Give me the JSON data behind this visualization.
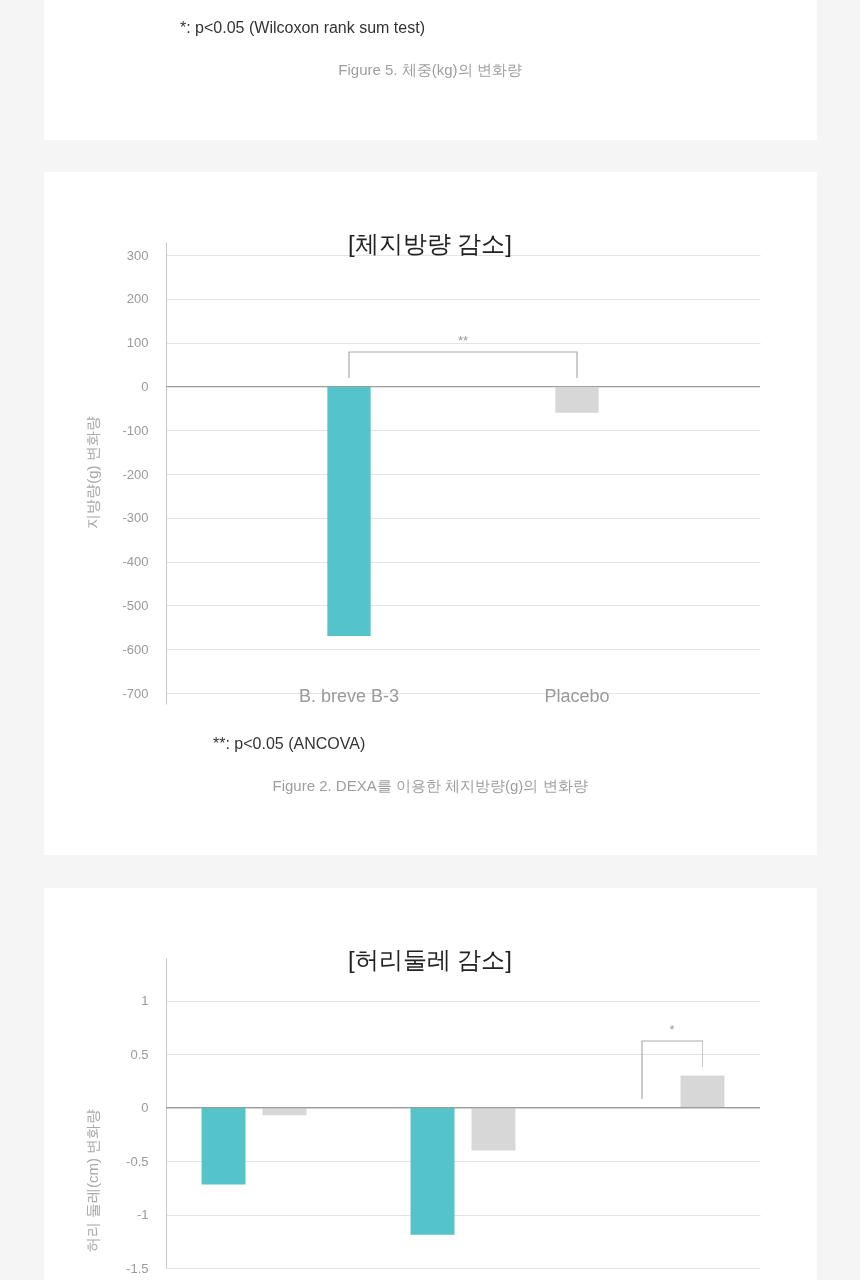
{
  "chart_data": [
    {
      "type": "other",
      "annotations": [
        "*: p<0.05 (Wilcoxon rank sum test)",
        "Figure 5. 체중(kg)의 변화량"
      ]
    },
    {
      "type": "bar",
      "title": "[체지방량 감소]",
      "ylabel": "지방량(g) 변화량",
      "categories": [
        "B. breve B-3",
        "Placebo"
      ],
      "values": [
        -570,
        -60
      ],
      "colors": [
        "#55c4ca",
        "#d7d7d7"
      ],
      "ylim": [
        -725,
        330
      ],
      "yticks": [
        -700,
        -600,
        -500,
        -400,
        -300,
        -200,
        -100,
        0,
        100,
        200,
        300
      ],
      "grid": "y",
      "annotations": [
        "**",
        "**: p<0.05 (ANCOVA)",
        "Figure 2. DEXA를 이용한 체지방량(g)의 변화량"
      ]
    },
    {
      "type": "bar",
      "title": "[허리둘레 감소]",
      "ylabel": "허리 둘레(cm) 변화량",
      "categories": [
        null,
        null,
        null
      ],
      "series": [
        {
          "color": "#55c4ca",
          "values": [
            -0.72,
            -1.19,
            null
          ]
        },
        {
          "color": "#d7d7d7",
          "values": [
            -0.07,
            -0.4,
            0.3
          ]
        }
      ],
      "ylim": [
        -1.5,
        1.4
      ],
      "yticks": [
        -1.5,
        -1,
        -0.5,
        0,
        0.5,
        1
      ],
      "grid": "y",
      "annotations": [
        "*"
      ]
    }
  ]
}
